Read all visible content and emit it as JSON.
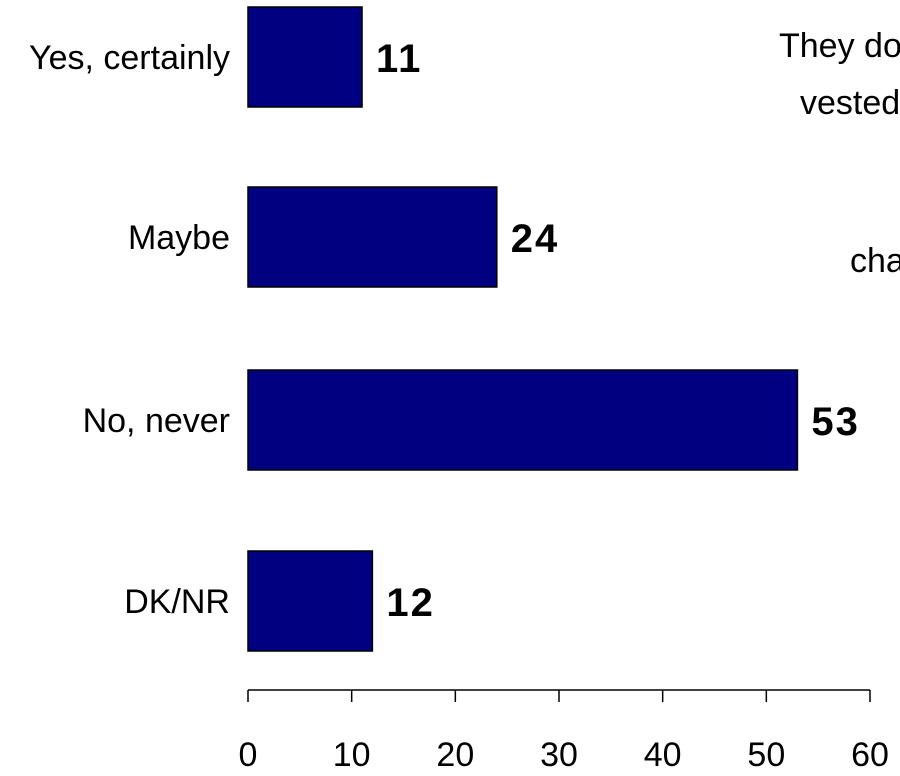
{
  "chart_data": {
    "type": "bar",
    "orientation": "horizontal",
    "categories": [
      "Yes, certainly",
      "Maybe",
      "No, never",
      "DK/NR"
    ],
    "values": [
      11,
      24,
      53,
      12
    ],
    "data_labels": [
      "11",
      "24",
      "53",
      "12"
    ],
    "xlim": [
      0,
      60
    ],
    "xticks": [
      0,
      10,
      20,
      30,
      40,
      50,
      60
    ],
    "xtick_labels": [
      "0",
      "10",
      "20",
      "30",
      "40",
      "50",
      "60"
    ],
    "grid": false,
    "legend": "none",
    "bar_color": "#000080",
    "bar_edge_color": "#000000",
    "title": "",
    "xlabel": "",
    "ylabel": ""
  },
  "side_text": {
    "line1": "They do",
    "line2": "vested",
    "line3": "cha"
  }
}
